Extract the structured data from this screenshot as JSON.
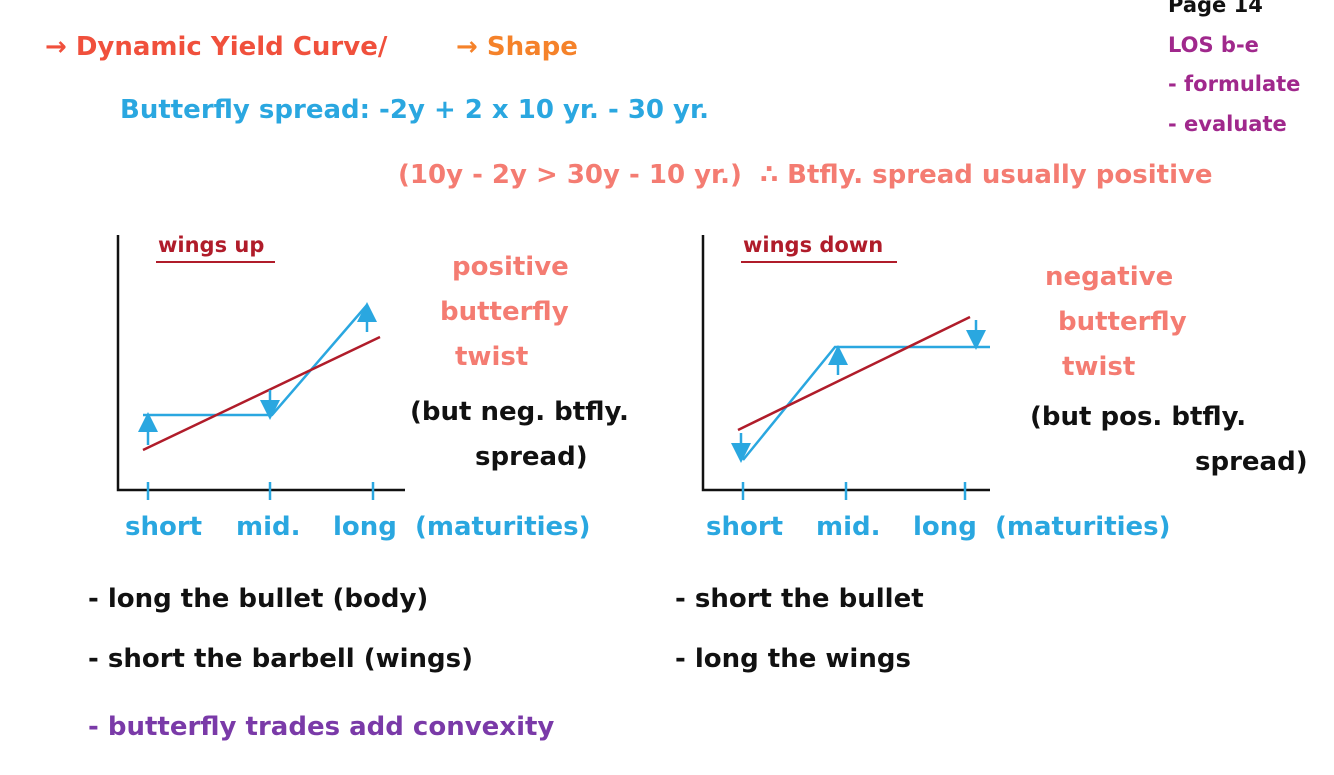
{
  "page_label": "Page 14",
  "los": [
    "LOS b-e",
    "- formulate",
    "- evaluate"
  ],
  "heading": {
    "topic": "→ Dynamic Yield Curve/",
    "subtopic": "→ Shape"
  },
  "formula": "Butterfly spread: -2y + 2 x 10 yr. - 30 yr.",
  "note": "(10y - 2y > 30y - 10 yr.)  ∴ Btfly. spread usually positive",
  "panels": [
    {
      "title": "wings up",
      "description": [
        "positive",
        "butterfly",
        "twist"
      ],
      "caveat": [
        "(but neg. btfly.",
        "spread)"
      ],
      "axis_labels": [
        "short",
        "mid.",
        "long",
        "(maturities)"
      ],
      "trades": [
        "- long the bullet (body)",
        "- short the barbell (wings)"
      ]
    },
    {
      "title": "wings down",
      "description": [
        "negative",
        "butterfly",
        "twist"
      ],
      "caveat": [
        "(but pos. btfly.",
        "spread)"
      ],
      "axis_labels": [
        "short",
        "mid.",
        "long",
        "(maturities)"
      ],
      "trades": [
        "- short the bullet",
        "- long the wings"
      ]
    }
  ],
  "conclusion": "- butterfly trades add convexity"
}
